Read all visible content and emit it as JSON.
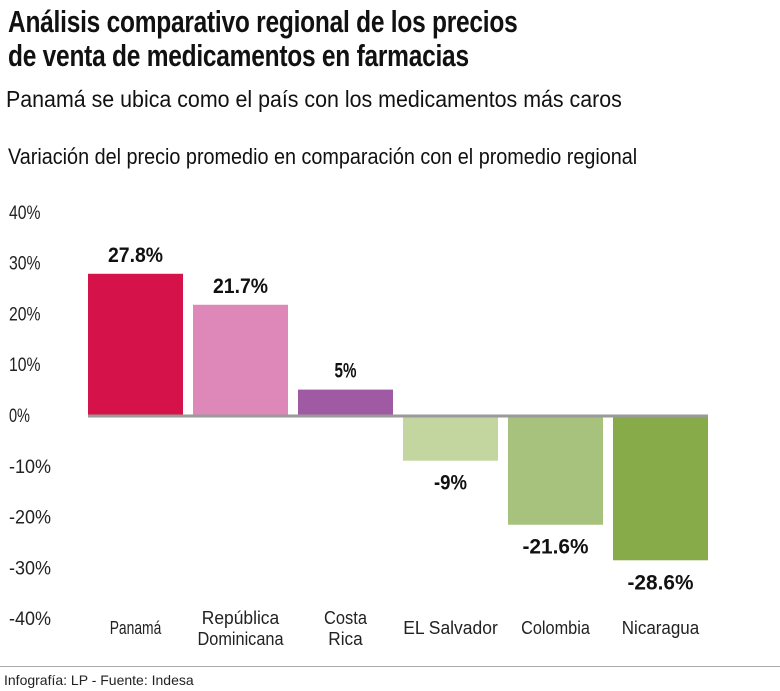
{
  "header": {
    "title_line1": "Análisis comparativo regional de los precios",
    "title_line2": "de venta de medicamentos  en farmacias",
    "subtitle": "Panamá  se ubica como el país con los medicamentos más caros"
  },
  "footer": "Infografía: LP - Fuente: Indesa",
  "chart_data": {
    "type": "bar",
    "title": "Variación del precio promedio en comparación con el promedio regional",
    "categories": [
      [
        "Panamá"
      ],
      [
        "República",
        "Dominicana"
      ],
      [
        "Costa",
        "Rica"
      ],
      [
        "EL Salvador"
      ],
      [
        "Colombia"
      ],
      [
        "Nicaragua"
      ]
    ],
    "values": [
      27.8,
      21.7,
      5,
      -9,
      -21.6,
      -28.6
    ],
    "data_labels": [
      "27.8%",
      "21.7%",
      "5%",
      "-9%",
      "-21.6%",
      "-28.6%"
    ],
    "colors": [
      "#d6124a",
      "#dd88b8",
      "#a059a3",
      "#c3d6a0",
      "#a7c27c",
      "#86ab48"
    ],
    "ylim": [
      -40,
      40
    ],
    "yticks": [
      40,
      30,
      20,
      10,
      0,
      -10,
      -20,
      -30,
      -40
    ],
    "ytick_labels": [
      "40%",
      "30%",
      "20%",
      "10%",
      "0%",
      "-10%",
      "-20%",
      "-30%",
      "-40%"
    ],
    "grid": false,
    "xlabel": "",
    "ylabel": ""
  }
}
